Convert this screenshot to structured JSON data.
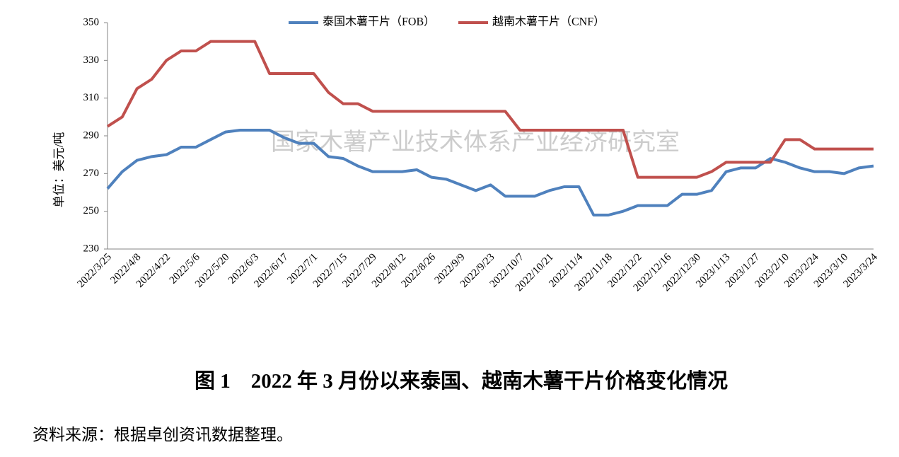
{
  "chart_data": {
    "type": "line",
    "y_label": "单位：美元/吨",
    "watermark": "国家木薯产业技术体系产业经济研究室",
    "caption": "图 1　2022 年 3 月份以来泰国、越南木薯干片价格变化情况",
    "source": "资料来源：根据卓创资讯数据整理。",
    "categories": [
      "2022/3/25",
      null,
      "2022/4/8",
      null,
      "2022/4/22",
      null,
      "2022/5/6",
      null,
      "2022/5/20",
      null,
      "2022/6/3",
      null,
      "2022/6/17",
      null,
      "2022/7/1",
      null,
      "2022/7/15",
      null,
      "2022/7/29",
      null,
      "2022/8/12",
      null,
      "2022/8/26",
      null,
      "2022/9/9",
      null,
      "2022/9/23",
      null,
      "2022/10/7",
      null,
      "2022/10/21",
      null,
      "2022/11/4",
      null,
      "2022/11/18",
      null,
      "2022/12/2",
      null,
      "2022/12/16",
      null,
      "2022/12/30",
      null,
      "2023/1/13",
      null,
      "2023/1/27",
      null,
      "2023/2/10",
      null,
      "2023/2/24",
      null,
      "2023/3/10",
      null,
      "2023/3/24"
    ],
    "series": [
      {
        "name": "泰国木薯干片（FOB）",
        "color": "#4f81bd",
        "values": [
          262,
          271,
          277,
          279,
          280,
          284,
          284,
          288,
          292,
          293,
          293,
          293,
          289,
          286,
          286,
          279,
          278,
          274,
          271,
          271,
          271,
          272,
          268,
          267,
          264,
          261,
          264,
          258,
          258,
          258,
          261,
          263,
          263,
          248,
          248,
          250,
          253,
          253,
          253,
          259,
          259,
          261,
          271,
          273,
          273,
          278,
          276,
          273,
          271,
          271,
          270,
          273,
          274
        ]
      },
      {
        "name": "越南木薯干片（CNF）",
        "color": "#c0504d",
        "values": [
          295,
          300,
          315,
          320,
          330,
          335,
          335,
          340,
          340,
          340,
          340,
          323,
          323,
          323,
          323,
          313,
          307,
          307,
          303,
          303,
          303,
          303,
          303,
          303,
          303,
          303,
          303,
          303,
          293,
          293,
          293,
          293,
          293,
          293,
          293,
          293,
          268,
          268,
          268,
          268,
          268,
          271,
          276,
          276,
          276,
          276,
          288,
          288,
          283,
          283,
          283,
          283,
          283
        ]
      }
    ],
    "ylim": [
      230,
      350
    ],
    "yticks": [
      230,
      250,
      270,
      290,
      310,
      330,
      350
    ],
    "grid": false,
    "legend": "top"
  }
}
